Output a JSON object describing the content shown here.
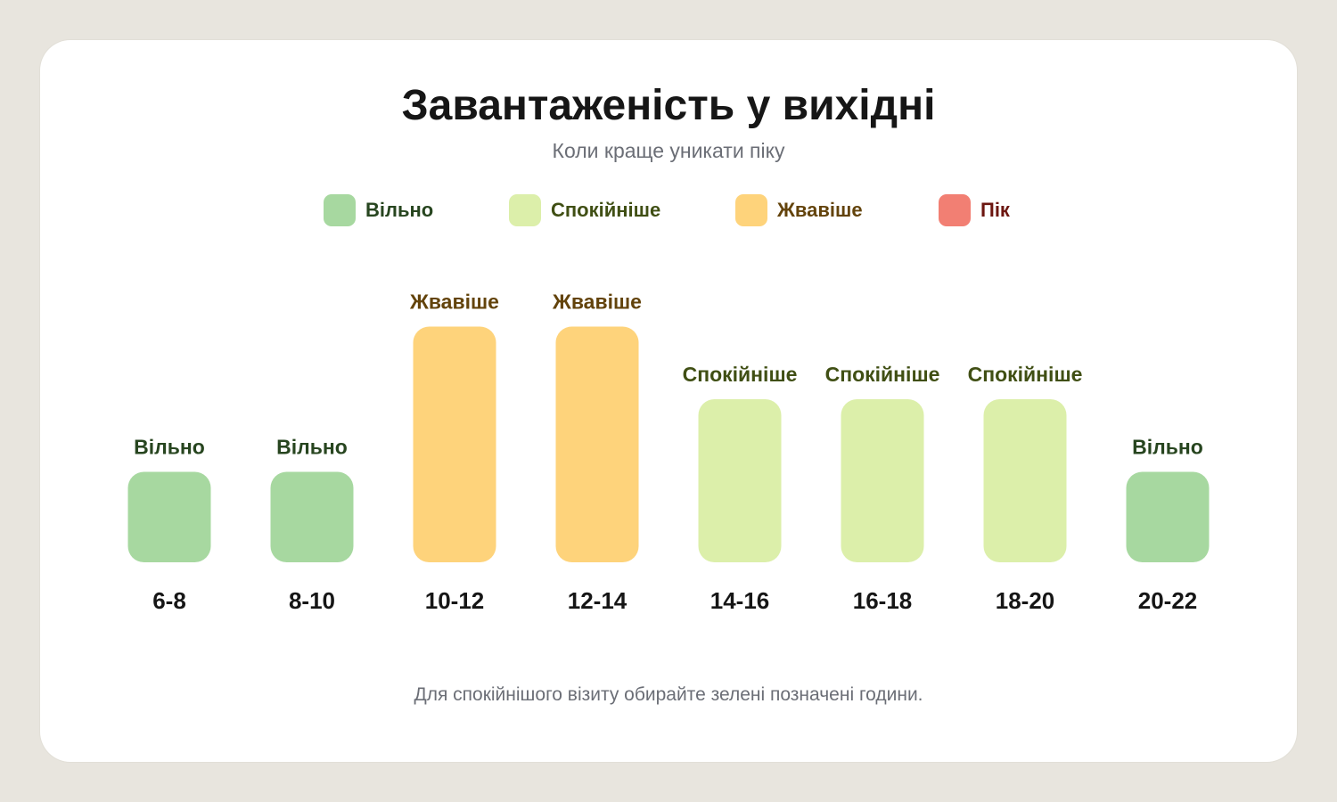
{
  "chart_data": {
    "type": "bar",
    "title": "Завантаженість у вихідні",
    "subtitle": "Коли краще уникати піку",
    "categories": [
      "6-8",
      "8-10",
      "10-12",
      "12-14",
      "14-16",
      "16-18",
      "18-20",
      "20-22"
    ],
    "levels": [
      {
        "key": "free",
        "label": "Вільно",
        "value": 1,
        "color": "#a7d8a0",
        "text_color": "#27451f"
      },
      {
        "key": "calm",
        "label": "Спокійніше",
        "value": 2,
        "color": "#dcefaa",
        "text_color": "#404f14"
      },
      {
        "key": "busy",
        "label": "Жвавіше",
        "value": 3,
        "color": "#fed37b",
        "text_color": "#63430b"
      },
      {
        "key": "peak",
        "label": "Пік",
        "value": 4,
        "color": "#f27f73",
        "text_color": "#6c1610"
      }
    ],
    "values": [
      1,
      1,
      3,
      3,
      2,
      2,
      2,
      1
    ],
    "value_labels": [
      "Вільно",
      "Вільно",
      "Жвавіше",
      "Жвавіше",
      "Спокійніше",
      "Спокійніше",
      "Спокійніше",
      "Вільно"
    ],
    "ylim": [
      0,
      4
    ],
    "grid": false,
    "legend_position": "top-center"
  },
  "footer_note": "Для спокійнішого візиту обирайте зелені позначені години."
}
